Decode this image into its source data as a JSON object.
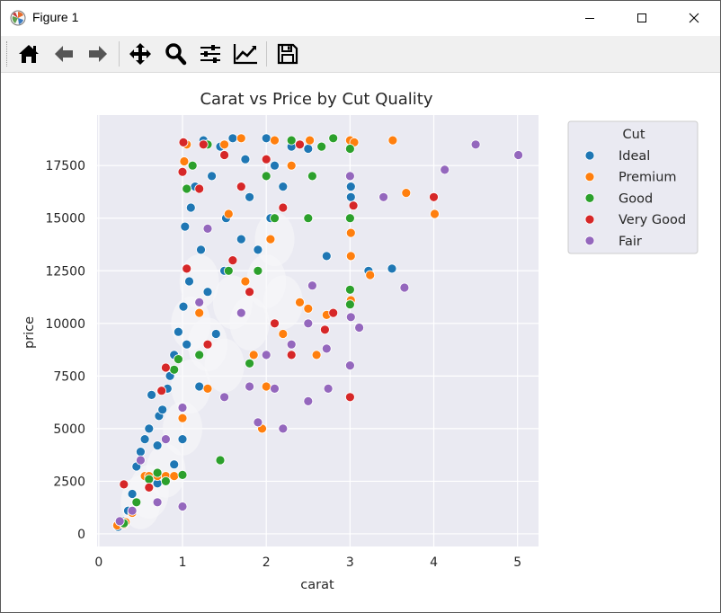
{
  "window": {
    "title": "Figure 1"
  },
  "toolbar": {
    "buttons": [
      {
        "name": "home-icon"
      },
      {
        "name": "back-arrow-icon"
      },
      {
        "name": "forward-arrow-icon"
      },
      {
        "name": "pan-icon"
      },
      {
        "name": "zoom-icon"
      },
      {
        "name": "configure-subplots-icon"
      },
      {
        "name": "edit-axes-icon"
      },
      {
        "name": "save-icon"
      }
    ]
  },
  "chart_data": {
    "type": "scatter",
    "title": "Carat vs Price by Cut Quality",
    "xlabel": "carat",
    "ylabel": "price",
    "xlim": [
      -0.02,
      5.25
    ],
    "ylim": [
      -600,
      19900
    ],
    "xticks": [
      0,
      1,
      2,
      3,
      4,
      5
    ],
    "yticks": [
      0,
      2500,
      5000,
      7500,
      10000,
      12500,
      15000,
      17500
    ],
    "ytick_labels": [
      "0",
      "2500",
      "5000",
      "7500",
      "10000",
      "12500",
      "15000",
      "17500"
    ],
    "grid": true,
    "background": "#eaeaf2",
    "legend": {
      "title": "Cut",
      "placement": "outside-upper-right"
    },
    "series": [
      {
        "name": "Ideal",
        "color": "#1f77b4",
        "points": [
          [
            0.23,
            326
          ],
          [
            0.3,
            600
          ],
          [
            0.35,
            1100
          ],
          [
            0.4,
            1900
          ],
          [
            0.45,
            3200
          ],
          [
            0.5,
            3900
          ],
          [
            0.55,
            4500
          ],
          [
            0.6,
            5000
          ],
          [
            0.63,
            6600
          ],
          [
            0.7,
            2400
          ],
          [
            0.7,
            4200
          ],
          [
            0.72,
            5600
          ],
          [
            0.76,
            5900
          ],
          [
            0.8,
            2750
          ],
          [
            0.82,
            6900
          ],
          [
            0.85,
            7500
          ],
          [
            0.9,
            3300
          ],
          [
            0.9,
            8500
          ],
          [
            0.95,
            9600
          ],
          [
            1.0,
            4500
          ],
          [
            1.01,
            10800
          ],
          [
            1.03,
            14600
          ],
          [
            1.05,
            9000
          ],
          [
            1.08,
            12000
          ],
          [
            1.1,
            15500
          ],
          [
            1.15,
            16500
          ],
          [
            1.2,
            7000
          ],
          [
            1.22,
            13500
          ],
          [
            1.25,
            18700
          ],
          [
            1.3,
            11500
          ],
          [
            1.35,
            17000
          ],
          [
            1.4,
            9500
          ],
          [
            1.45,
            18400
          ],
          [
            1.5,
            12500
          ],
          [
            1.52,
            15000
          ],
          [
            1.6,
            18800
          ],
          [
            1.7,
            14000
          ],
          [
            1.75,
            17800
          ],
          [
            1.8,
            16000
          ],
          [
            1.9,
            13500
          ],
          [
            2.0,
            18800
          ],
          [
            2.05,
            15000
          ],
          [
            2.1,
            17500
          ],
          [
            2.2,
            16500
          ],
          [
            2.3,
            18400
          ],
          [
            2.5,
            18300
          ],
          [
            2.72,
            13200
          ],
          [
            3.01,
            16500
          ],
          [
            3.01,
            16000
          ],
          [
            3.22,
            12500
          ],
          [
            3.5,
            12600
          ]
        ]
      },
      {
        "name": "Premium",
        "color": "#ff7f0e",
        "points": [
          [
            0.22,
            404
          ],
          [
            0.3,
            450
          ],
          [
            0.32,
            560
          ],
          [
            0.4,
            1000
          ],
          [
            0.55,
            2750
          ],
          [
            0.6,
            2750
          ],
          [
            0.7,
            2750
          ],
          [
            0.8,
            2750
          ],
          [
            0.9,
            2750
          ],
          [
            1.0,
            5500
          ],
          [
            1.02,
            17700
          ],
          [
            1.05,
            18500
          ],
          [
            1.2,
            10500
          ],
          [
            1.3,
            6900
          ],
          [
            1.5,
            18500
          ],
          [
            1.55,
            15200
          ],
          [
            1.7,
            18800
          ],
          [
            1.75,
            12000
          ],
          [
            1.85,
            8500
          ],
          [
            1.95,
            5000
          ],
          [
            2.0,
            7000
          ],
          [
            2.05,
            14000
          ],
          [
            2.1,
            18700
          ],
          [
            2.2,
            9500
          ],
          [
            2.3,
            17500
          ],
          [
            2.4,
            11000
          ],
          [
            2.5,
            10700
          ],
          [
            2.52,
            18700
          ],
          [
            2.6,
            8500
          ],
          [
            2.72,
            10400
          ],
          [
            3.0,
            18700
          ],
          [
            3.01,
            14300
          ],
          [
            3.01,
            13200
          ],
          [
            3.01,
            11100
          ],
          [
            3.05,
            18600
          ],
          [
            3.24,
            12300
          ],
          [
            3.51,
            18700
          ],
          [
            3.67,
            16200
          ],
          [
            4.01,
            15200
          ]
        ]
      },
      {
        "name": "Good",
        "color": "#2ca02c",
        "points": [
          [
            0.3,
            500
          ],
          [
            0.45,
            1500
          ],
          [
            0.6,
            2600
          ],
          [
            0.7,
            2900
          ],
          [
            0.8,
            2500
          ],
          [
            0.9,
            7800
          ],
          [
            0.95,
            8300
          ],
          [
            1.0,
            2800
          ],
          [
            1.05,
            16400
          ],
          [
            1.12,
            17500
          ],
          [
            1.2,
            8500
          ],
          [
            1.3,
            18500
          ],
          [
            1.45,
            3500
          ],
          [
            1.55,
            12500
          ],
          [
            1.8,
            8100
          ],
          [
            1.9,
            12500
          ],
          [
            2.0,
            17000
          ],
          [
            2.1,
            15000
          ],
          [
            2.3,
            18700
          ],
          [
            2.5,
            15000
          ],
          [
            2.55,
            17000
          ],
          [
            2.66,
            18400
          ],
          [
            2.8,
            18800
          ],
          [
            3.0,
            18300
          ],
          [
            3.0,
            15000
          ],
          [
            3.0,
            11600
          ],
          [
            3.0,
            10900
          ]
        ]
      },
      {
        "name": "Very Good",
        "color": "#d62728",
        "points": [
          [
            0.3,
            2350
          ],
          [
            0.6,
            2200
          ],
          [
            0.75,
            6800
          ],
          [
            0.8,
            7900
          ],
          [
            1.0,
            17200
          ],
          [
            1.01,
            18600
          ],
          [
            1.05,
            12600
          ],
          [
            1.2,
            16400
          ],
          [
            1.25,
            18500
          ],
          [
            1.3,
            9000
          ],
          [
            1.5,
            18000
          ],
          [
            1.6,
            13000
          ],
          [
            1.7,
            16500
          ],
          [
            1.8,
            11500
          ],
          [
            2.0,
            17800
          ],
          [
            2.1,
            10000
          ],
          [
            2.2,
            15500
          ],
          [
            2.3,
            8500
          ],
          [
            2.4,
            18500
          ],
          [
            2.7,
            9700
          ],
          [
            2.8,
            10500
          ],
          [
            3.0,
            6500
          ],
          [
            3.04,
            15600
          ],
          [
            4.0,
            16000
          ]
        ]
      },
      {
        "name": "Fair",
        "color": "#9467bd",
        "points": [
          [
            0.25,
            600
          ],
          [
            0.4,
            1100
          ],
          [
            0.5,
            3500
          ],
          [
            0.7,
            1500
          ],
          [
            0.8,
            4500
          ],
          [
            1.0,
            1300
          ],
          [
            1.0,
            6000
          ],
          [
            1.2,
            11000
          ],
          [
            1.3,
            14500
          ],
          [
            1.5,
            6500
          ],
          [
            1.7,
            10500
          ],
          [
            1.8,
            7000
          ],
          [
            1.9,
            5300
          ],
          [
            2.0,
            8500
          ],
          [
            2.1,
            6900
          ],
          [
            2.2,
            5000
          ],
          [
            2.3,
            9000
          ],
          [
            2.5,
            6300
          ],
          [
            2.5,
            10000
          ],
          [
            2.55,
            11800
          ],
          [
            2.72,
            8800
          ],
          [
            2.74,
            6900
          ],
          [
            3.0,
            8000
          ],
          [
            3.0,
            17000
          ],
          [
            3.01,
            10300
          ],
          [
            3.11,
            9800
          ],
          [
            3.4,
            16000
          ],
          [
            3.65,
            11700
          ],
          [
            4.13,
            17300
          ],
          [
            4.5,
            18500
          ],
          [
            5.01,
            18000
          ]
        ]
      }
    ]
  }
}
